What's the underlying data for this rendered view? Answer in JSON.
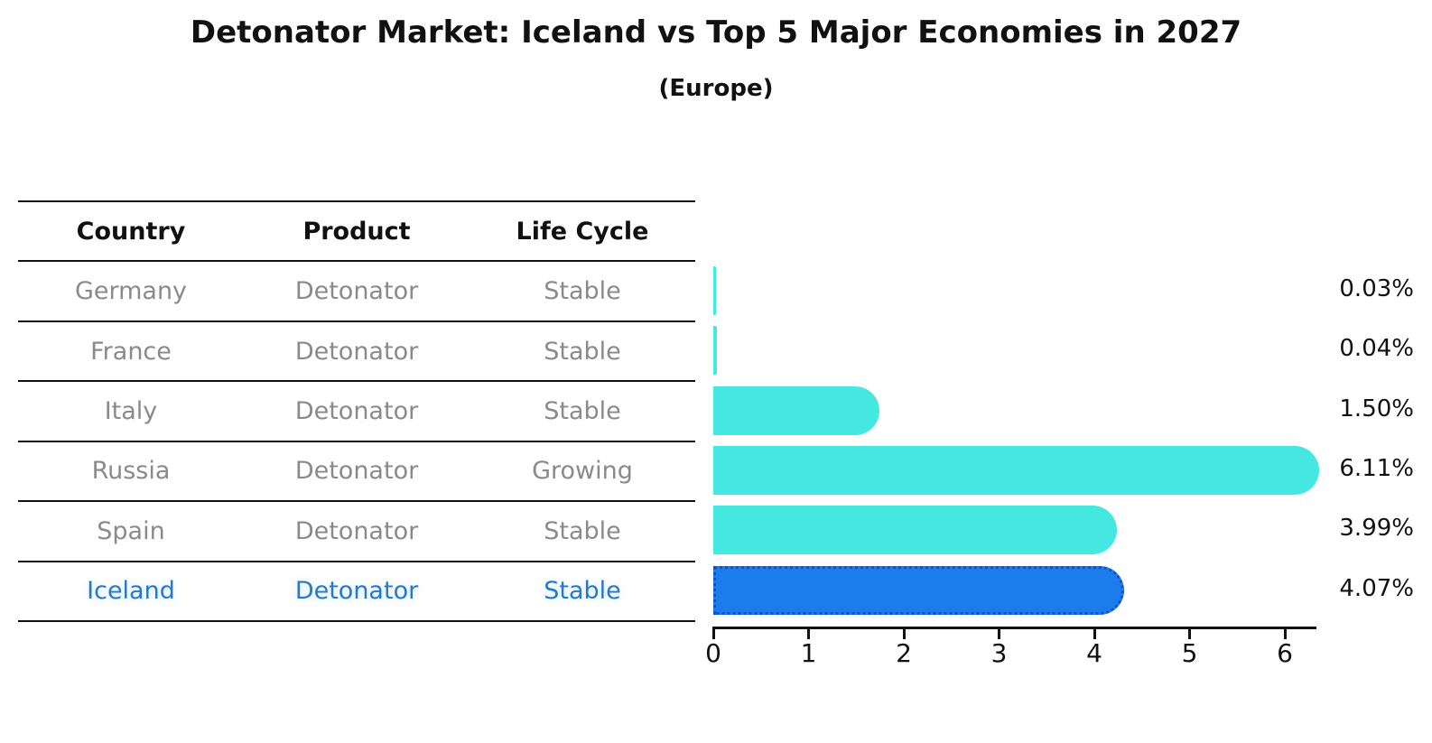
{
  "title": "Detonator Market: Iceland vs Top 5 Major Economies in 2027",
  "subtitle": "(Europe)",
  "table": {
    "headers": [
      "Country",
      "Product",
      "Life Cycle"
    ],
    "rows": [
      {
        "country": "Germany",
        "product": "Detonator",
        "life_cycle": "Stable",
        "highlight": false
      },
      {
        "country": "France",
        "product": "Detonator",
        "life_cycle": "Stable",
        "highlight": false
      },
      {
        "country": "Italy",
        "product": "Detonator",
        "life_cycle": "Stable",
        "highlight": false
      },
      {
        "country": "Russia",
        "product": "Detonator",
        "life_cycle": "Growing",
        "highlight": false
      },
      {
        "country": "Spain",
        "product": "Detonator",
        "life_cycle": "Stable",
        "highlight": false
      },
      {
        "country": "Iceland",
        "product": "Detonator",
        "life_cycle": "Stable",
        "highlight": true
      }
    ]
  },
  "chart_data": {
    "type": "bar",
    "orientation": "horizontal",
    "categories": [
      "Germany",
      "France",
      "Italy",
      "Russia",
      "Spain",
      "Iceland"
    ],
    "values": [
      0.03,
      0.04,
      1.5,
      6.11,
      3.99,
      4.07
    ],
    "value_labels": [
      "0.03%",
      "0.04%",
      "1.50%",
      "6.11%",
      "3.99%",
      "4.07%"
    ],
    "xticks": [
      0,
      1,
      2,
      3,
      4,
      5,
      6
    ],
    "xlim": [
      0,
      6.35
    ],
    "grid": false,
    "legend": null,
    "bar_color": "#45e8e0",
    "highlight_color": "#1d7cec",
    "highlight_border_color": "#1254c8",
    "highlight_index": 5,
    "highlight_text_color": "#2878c8",
    "row_text_color": "#8a8a8a",
    "axis_color": "#111111"
  }
}
